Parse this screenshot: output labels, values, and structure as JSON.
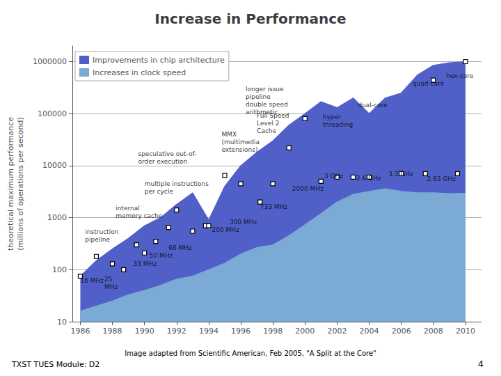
{
  "chart_data": {
    "type": "area",
    "title": "Increase in Performance",
    "subtitle": "Image adapted from Scientific American, Feb 2005, \"A Split at the Core\"",
    "footer": "TXST TUES Module: D2",
    "footer_right": "4",
    "ylabel": "theoretical maximum performance\n(millions of operations per second)",
    "log": "y",
    "grid": "y",
    "legend": "upper left",
    "xlim": [
      1985.5,
      2011
    ],
    "xticks": [
      1986,
      1988,
      1990,
      1992,
      1994,
      1996,
      1998,
      2000,
      2002,
      2004,
      2006,
      2008,
      2010
    ],
    "ylim": [
      10,
      2000000
    ],
    "yticks": [
      10,
      100,
      1000,
      10000,
      100000,
      1000000
    ],
    "x": [
      1986,
      1987,
      1988,
      1989,
      1990,
      1991,
      1992,
      1993,
      1994,
      1995,
      1996,
      1997,
      1998,
      1999,
      2000,
      2001,
      2002,
      2003,
      2004,
      2005,
      2006,
      2007,
      2008,
      2009,
      2010
    ],
    "series": [
      {
        "name": "Improvements in chip architecture",
        "color": "#5060c8",
        "values": [
          75,
          150,
          250,
          400,
          700,
          1000,
          1800,
          3000,
          900,
          4000,
          10000,
          18000,
          30000,
          60000,
          100000,
          170000,
          130000,
          200000,
          100000,
          200000,
          250000,
          550000,
          850000,
          950000,
          1000000
        ]
      },
      {
        "name": "Increases in clock speed",
        "color": "#7baad4",
        "values": [
          16,
          20,
          25,
          33,
          40,
          50,
          66,
          75,
          100,
          133,
          200,
          266,
          300,
          450,
          733,
          1200,
          2000,
          2800,
          3200,
          3600,
          3200,
          3000,
          3000,
          2900,
          2930
        ]
      }
    ],
    "points": {
      "type": "scatter",
      "marker": "square",
      "x": [
        1986,
        1987,
        1988,
        1988.7,
        1989.5,
        1990,
        1990.7,
        1991.5,
        1992,
        1993,
        1993.8,
        1994,
        1995,
        1996,
        1997.2,
        1998,
        1999,
        2000,
        2001,
        2002,
        2003,
        2004,
        2006,
        2007.5,
        2008,
        2009.5,
        2010
      ],
      "y": [
        75,
        180,
        130,
        100,
        300,
        210,
        350,
        650,
        1400,
        550,
        700,
        700,
        6500,
        4500,
        2000,
        4500,
        22000,
        80000,
        5000,
        6000,
        6000,
        6000,
        7000,
        7000,
        440000,
        7000,
        1000000
      ]
    },
    "annotations": [
      {
        "x": 1986.0,
        "y": 62,
        "text": "16 MHz"
      },
      {
        "x": 1987.5,
        "y": 55,
        "text": "25\nMHz"
      },
      {
        "x": 1989.3,
        "y": 130,
        "text": "33 MHz"
      },
      {
        "x": 1990.3,
        "y": 185,
        "text": "50 MHz"
      },
      {
        "x": 1991.5,
        "y": 265,
        "text": "66 MHz"
      },
      {
        "x": 1994.2,
        "y": 580,
        "text": "200 MHz"
      },
      {
        "x": 1995.3,
        "y": 820,
        "text": "300 MHz"
      },
      {
        "x": 1997.2,
        "y": 1600,
        "text": "733 MHz"
      },
      {
        "x": 1999.2,
        "y": 3600,
        "text": "2000 MHz"
      },
      {
        "x": 2001.2,
        "y": 6200,
        "text": "3 GHz"
      },
      {
        "x": 2003.2,
        "y": 5800,
        "text": "2.6 GHz"
      },
      {
        "x": 2005.2,
        "y": 6800,
        "text": "3.3 GHz"
      },
      {
        "x": 2007.6,
        "y": 5500,
        "text": "2.93 GHz"
      },
      {
        "x": 1986.3,
        "y": 450,
        "text": "instruction\npipeline"
      },
      {
        "x": 1988.2,
        "y": 1300,
        "text": "internal\nmemory cache"
      },
      {
        "x": 1990.0,
        "y": 3800,
        "text": "multiple instructions\nper cycle"
      },
      {
        "x": 1989.6,
        "y": 14000,
        "text": "speculative out-of-\norder execution"
      },
      {
        "x": 1994.8,
        "y": 28000,
        "text": "MMX\n(multimedia\nextensions)"
      },
      {
        "x": 1997.0,
        "y": 65000,
        "text": "Full Speed\nLevel 2\nCache"
      },
      {
        "x": 1996.3,
        "y": 180000,
        "text": "longer issue\npipeline\ndouble speed\narithmetic"
      },
      {
        "x": 2001.1,
        "y": 72000,
        "text": "hyper\nthreading"
      },
      {
        "x": 2003.3,
        "y": 145000,
        "text": "dual-core"
      },
      {
        "x": 2006.7,
        "y": 380000,
        "text": "quad-core"
      },
      {
        "x": 2008.8,
        "y": 530000,
        "text": "hex-core"
      }
    ]
  }
}
